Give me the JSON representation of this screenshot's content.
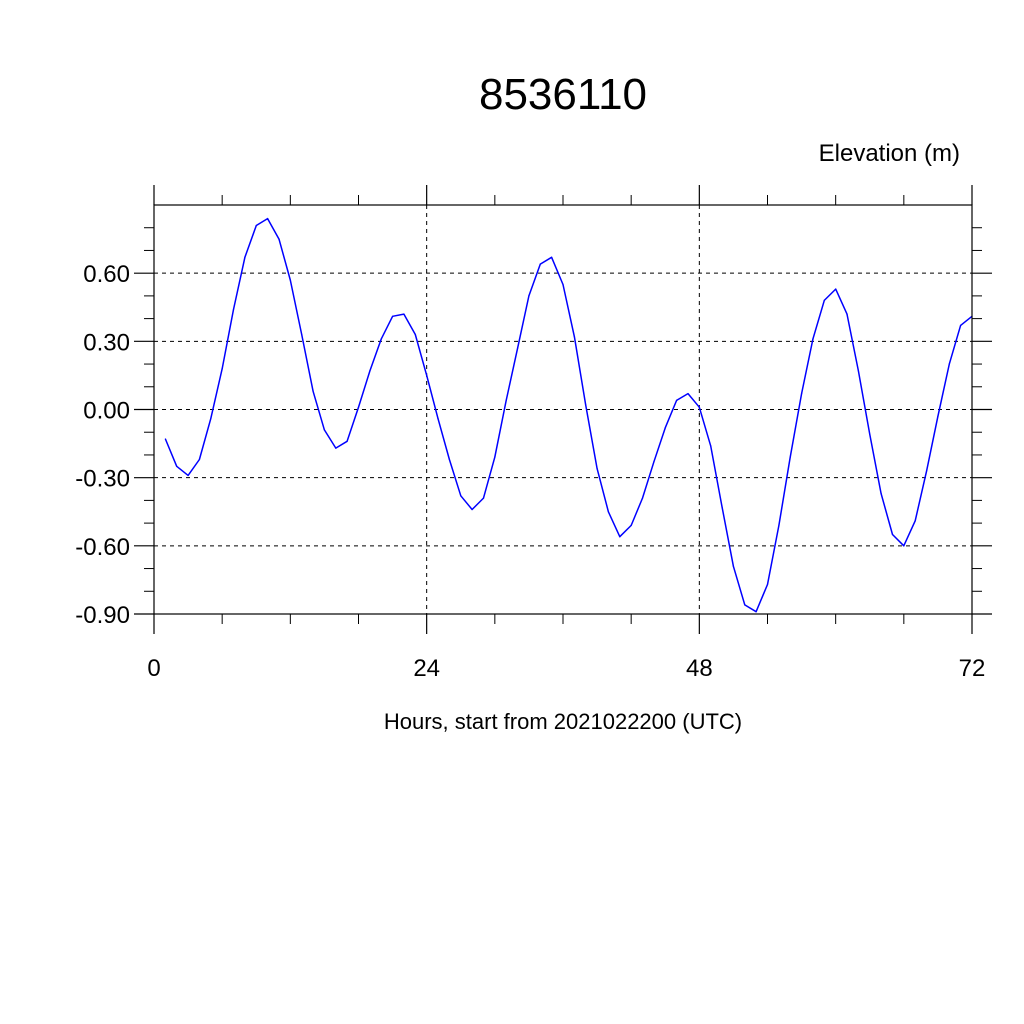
{
  "chart_data": {
    "type": "line",
    "title": "8536110",
    "ylabel": "Elevation (m)",
    "xlabel": "Hours, start from 2021022200 (UTC)",
    "xlim": [
      0,
      72
    ],
    "ylim": [
      -0.9,
      0.9
    ],
    "x_ticks": [
      0,
      24,
      48,
      72
    ],
    "x_tick_labels": [
      "0",
      "24",
      "48",
      "72"
    ],
    "y_ticks": [
      0.6,
      0.3,
      0.0,
      -0.3,
      -0.6,
      -0.9
    ],
    "y_tick_labels": [
      "0.60",
      "0.30",
      "0.00",
      "-0.30",
      "-0.60",
      "-0.90"
    ],
    "grid": true,
    "series": [
      {
        "color": "#0000ff",
        "x": [
          1,
          2,
          3,
          4,
          5,
          6,
          7,
          8,
          9,
          10,
          11,
          12,
          13,
          14,
          15,
          16,
          17,
          18,
          19,
          20,
          21,
          22,
          23,
          24,
          25,
          26,
          27,
          28,
          29,
          30,
          31,
          32,
          33,
          34,
          35,
          36,
          37,
          38,
          39,
          40,
          41,
          42,
          43,
          44,
          45,
          46,
          47,
          48,
          49,
          50,
          51,
          52,
          53,
          54,
          55,
          56,
          57,
          58,
          59,
          60,
          61,
          62,
          63,
          64,
          65,
          66,
          67,
          68,
          69,
          70,
          71,
          72
        ],
        "values": [
          -0.13,
          -0.25,
          -0.29,
          -0.22,
          -0.04,
          0.18,
          0.44,
          0.67,
          0.81,
          0.84,
          0.75,
          0.57,
          0.33,
          0.08,
          -0.09,
          -0.17,
          -0.14,
          0.01,
          0.17,
          0.31,
          0.41,
          0.42,
          0.33,
          0.15,
          -0.04,
          -0.22,
          -0.38,
          -0.44,
          -0.39,
          -0.21,
          0.04,
          0.27,
          0.5,
          0.64,
          0.67,
          0.55,
          0.32,
          0.02,
          -0.26,
          -0.45,
          -0.56,
          -0.51,
          -0.39,
          -0.23,
          -0.08,
          0.04,
          0.07,
          0.01,
          -0.16,
          -0.43,
          -0.69,
          -0.86,
          -0.89,
          -0.77,
          -0.51,
          -0.21,
          0.07,
          0.31,
          0.48,
          0.53,
          0.42,
          0.17,
          -0.11,
          -0.37,
          -0.55,
          -0.6,
          -0.49,
          -0.27,
          -0.03,
          0.2,
          0.37,
          0.41
        ]
      }
    ]
  }
}
